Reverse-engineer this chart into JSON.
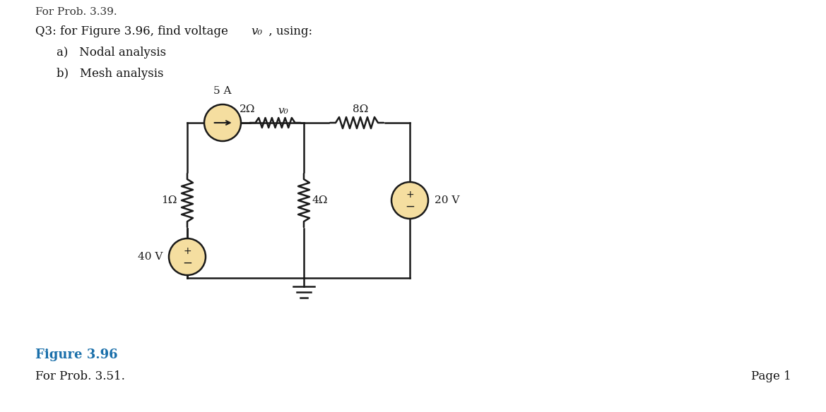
{
  "bg_color": "#ffffff",
  "circuit_color": "#1a1a1a",
  "node_color": "#f5dea0",
  "node_edge": "#1a1a1a",
  "title_line": "Q3: for Figure 3.96, find voltage ",
  "title_vo": "v₀",
  "title_end": " , using:",
  "sub_a": "a)   Nodal analysis",
  "sub_b": "b)   Mesh analysis",
  "cs_label": "5 A",
  "r1_label": "1Ω",
  "r2_label": "2Ω",
  "r4_label": "4Ω",
  "r8_label": "8Ω",
  "v40_label": "40 V",
  "v20_label": "20 V",
  "vo_label": "v₀",
  "fig_label": "Figure 3.96",
  "fig_sub": "For Prob. 3.51.",
  "page": "Page 1",
  "prev_text": "For Prob. 3.39.",
  "lw": 1.8,
  "cs_r": 0.26,
  "vs_r": 0.26
}
